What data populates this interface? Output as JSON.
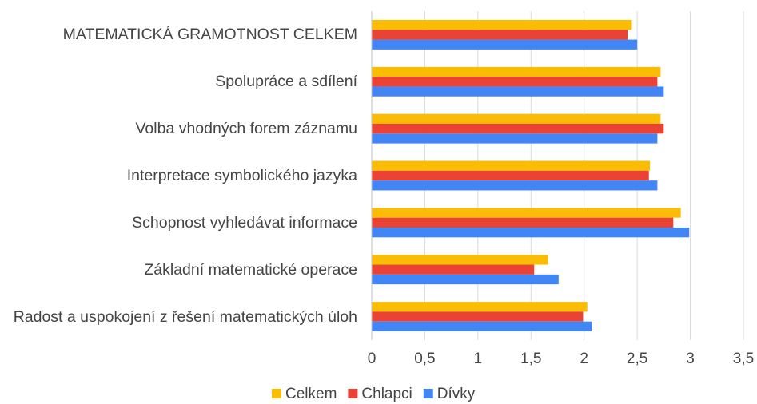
{
  "chart_data": {
    "type": "hbar",
    "categories": [
      "MATEMATICKÁ GRAMOTNOST CELKEM",
      "Spolupráce a sdílení",
      "Volba vhodných forem záznamu",
      "Interpretace symbolického jazyka",
      "Schopnost vyhledávat informace",
      "Základní matematické operace",
      "Radost a uspokojení z řešení matematických úloh"
    ],
    "series": [
      {
        "name": "Celkem",
        "color": "#fbbc04",
        "values": [
          2.45,
          2.72,
          2.72,
          2.62,
          2.91,
          1.66,
          2.03
        ]
      },
      {
        "name": "Chlapci",
        "color": "#ea4335",
        "values": [
          2.41,
          2.69,
          2.75,
          2.61,
          2.84,
          1.53,
          1.99
        ]
      },
      {
        "name": "Dívky",
        "color": "#4285f4",
        "values": [
          2.5,
          2.75,
          2.69,
          2.69,
          2.99,
          1.76,
          2.07
        ]
      }
    ],
    "xlim": [
      0,
      3.5
    ],
    "xticks": [
      0,
      {
        "value": 0.5,
        "label": "0,5"
      },
      1,
      {
        "value": 1.5,
        "label": "1,5"
      },
      2,
      {
        "value": 2.5,
        "label": "2,5"
      },
      3,
      {
        "value": 3.5,
        "label": "3,5"
      }
    ],
    "grid": true,
    "legend": "bottom"
  }
}
